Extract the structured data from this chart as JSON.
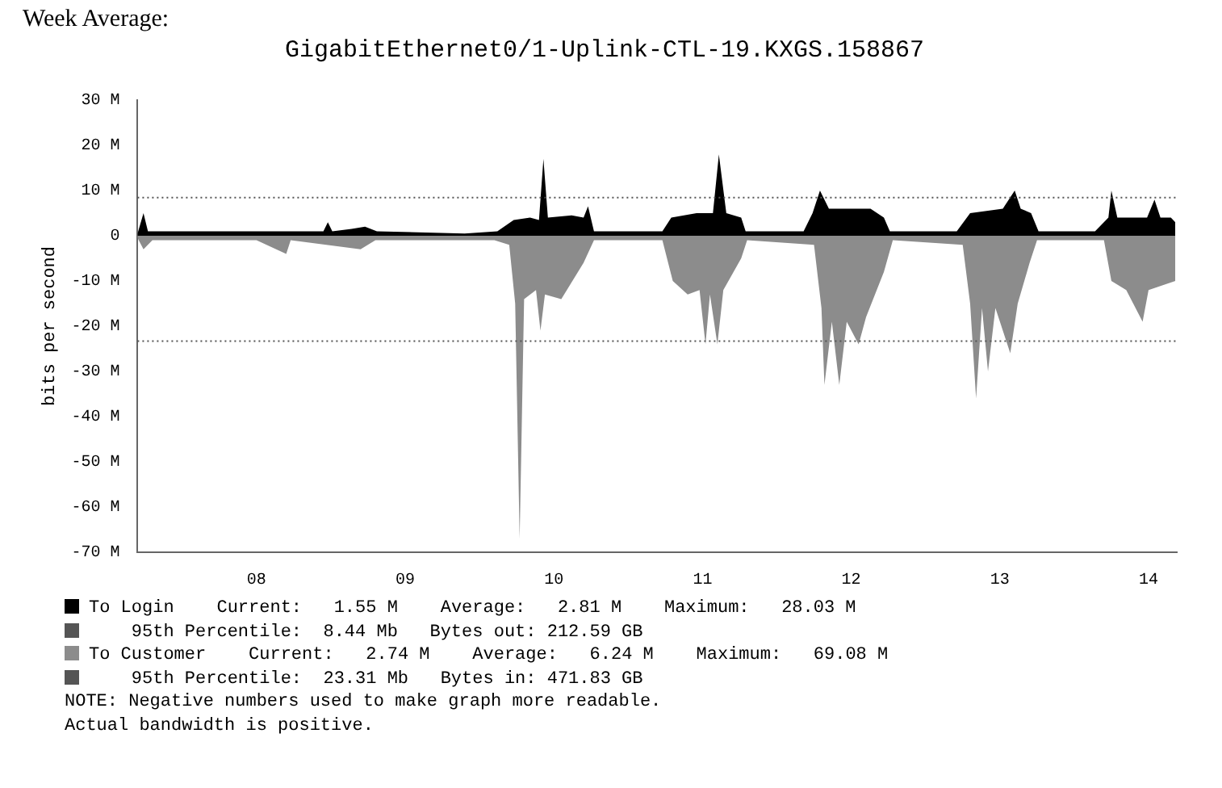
{
  "chart_data": {
    "type": "area",
    "title": "GigabitEthernet0/1-Uplink-CTL-19.KXGS.158867",
    "ylabel": "bits per second",
    "xlim": [
      7.2,
      14.19
    ],
    "xticks": [
      {
        "value": 8,
        "label": "08"
      },
      {
        "value": 9,
        "label": "09"
      },
      {
        "value": 10,
        "label": "10"
      },
      {
        "value": 11,
        "label": "11"
      },
      {
        "value": 12,
        "label": "12"
      },
      {
        "value": 13,
        "label": "13"
      },
      {
        "value": 14,
        "label": "14"
      }
    ],
    "ylim": [
      -70,
      30
    ],
    "yticks": [
      {
        "value": 30,
        "label": "30 M"
      },
      {
        "value": 20,
        "label": "20 M"
      },
      {
        "value": 10,
        "label": "10 M"
      },
      0,
      {
        "value": -10,
        "label": "-10 M"
      },
      {
        "value": -20,
        "label": "-20 M"
      },
      {
        "value": -30,
        "label": "-30 M"
      },
      {
        "value": -40,
        "label": "-40 M"
      },
      {
        "value": -50,
        "label": "-50 M"
      },
      {
        "value": -60,
        "label": "-60 M"
      },
      {
        "value": -70,
        "label": "-70 M"
      }
    ],
    "legend": "bottom",
    "series": [
      {
        "name": "To Login",
        "color": "#000000",
        "x": [
          7.2,
          7.24,
          7.27,
          7.72,
          8.28,
          8.45,
          8.48,
          8.51,
          8.64,
          8.73,
          8.81,
          9.4,
          9.62,
          9.73,
          9.84,
          9.9,
          9.93,
          9.96,
          10.12,
          10.2,
          10.23,
          10.27,
          10.73,
          10.79,
          10.96,
          11.07,
          11.11,
          11.16,
          11.26,
          11.29,
          11.68,
          11.74,
          11.79,
          11.85,
          12.13,
          12.22,
          12.26,
          12.71,
          12.8,
          13.02,
          13.1,
          13.14,
          13.21,
          13.26,
          13.64,
          13.73,
          13.75,
          13.79,
          13.99,
          14.04,
          14.08,
          14.15,
          14.18
        ],
        "values": [
          0.5,
          5,
          1,
          1,
          1,
          1,
          3,
          1,
          1.5,
          2,
          1,
          0.5,
          1,
          3.5,
          4,
          3.5,
          17,
          4,
          4.5,
          4,
          6.5,
          1,
          1,
          4,
          5,
          5,
          18,
          5,
          4,
          1,
          1,
          5,
          10,
          6,
          6,
          4,
          1,
          1,
          5,
          6,
          10,
          6,
          5,
          1,
          1,
          4,
          10,
          4,
          4,
          8,
          4,
          4,
          3
        ]
      },
      {
        "name": "To Customer",
        "color": "#8c8c8c",
        "x": [
          7.2,
          7.24,
          7.3,
          8.0,
          8.2,
          8.23,
          8.7,
          8.8,
          9.6,
          9.7,
          9.74,
          9.77,
          9.8,
          9.88,
          9.91,
          9.94,
          10.05,
          10.2,
          10.27,
          10.73,
          10.8,
          10.9,
          10.98,
          11.02,
          11.05,
          11.1,
          11.14,
          11.26,
          11.3,
          11.75,
          11.8,
          11.82,
          11.87,
          11.92,
          11.97,
          12.05,
          12.1,
          12.22,
          12.28,
          12.75,
          12.8,
          12.84,
          12.88,
          12.92,
          12.97,
          13.07,
          13.12,
          13.2,
          13.25,
          13.7,
          13.75,
          13.85,
          13.96,
          14.0,
          14.18
        ],
        "values": [
          -0.5,
          -3,
          -1,
          -1,
          -4,
          -1,
          -3,
          -1,
          -1,
          -2,
          -15,
          -67,
          -14,
          -12,
          -21,
          -13,
          -14,
          -6,
          -1,
          -1,
          -10,
          -13,
          -12,
          -24,
          -13,
          -24,
          -12,
          -5,
          -1,
          -2,
          -16,
          -33,
          -19,
          -33,
          -19,
          -24,
          -18,
          -8,
          -1,
          -2,
          -15,
          -36,
          -16,
          -30,
          -16,
          -26,
          -15,
          -6,
          -1,
          -1,
          -10,
          -12,
          -19,
          -12,
          -10
        ]
      }
    ],
    "ref_lines": [
      {
        "axis": "y",
        "value": 8.44,
        "color": "#555555",
        "line_style": "dotted"
      },
      {
        "axis": "y",
        "value": -23.31,
        "color": "#555555",
        "line_style": "dotted"
      }
    ],
    "annotations": [
      "Week Average:",
      "Current:   1.55 M    Average:   2.81 M    Maximum:   28.03 M",
      "95th Percentile:  8.44 Mb   Bytes out: 212.59 GB",
      "Current:   2.74 M    Average:   6.24 M    Maximum:   69.08 M",
      "95th Percentile:  23.31 Mb   Bytes in: 471.83 GB",
      "NOTE: Negative numbers used to make graph more readable.",
      "Actual bandwidth is positive."
    ]
  }
}
